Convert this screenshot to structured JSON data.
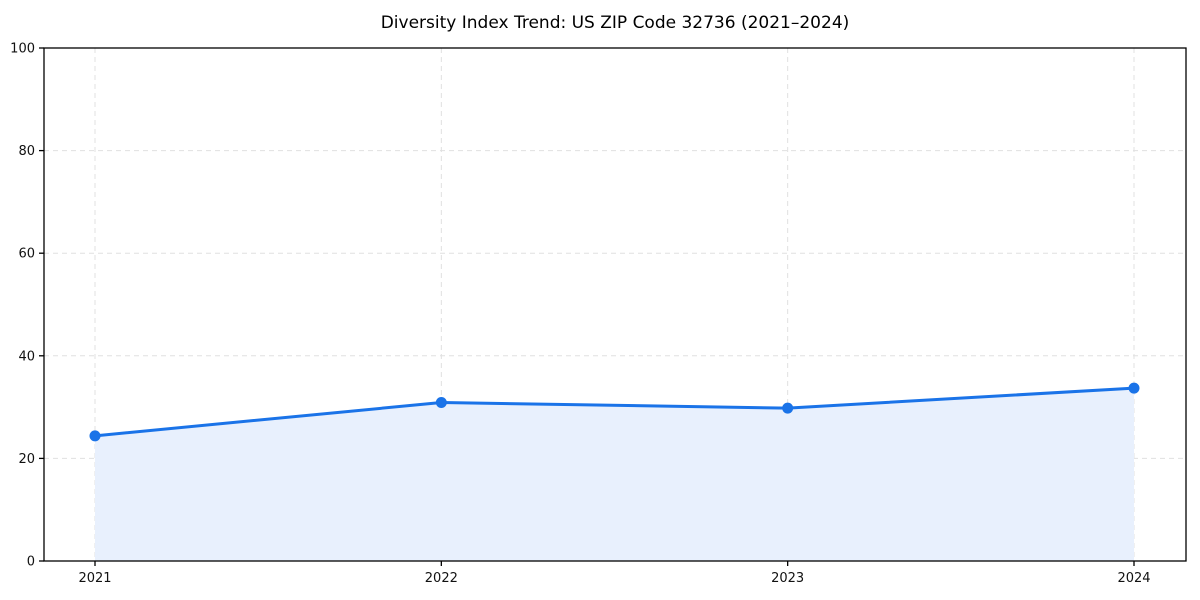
{
  "chart_data": {
    "type": "area",
    "title": "Diversity Index Trend: US ZIP Code 32736 (2021–2024)",
    "categories": [
      "2021",
      "2022",
      "2023",
      "2024"
    ],
    "series": [
      {
        "name": "Diversity Index",
        "values": [
          24.4,
          30.9,
          29.8,
          33.7
        ]
      }
    ],
    "xlabel": "",
    "ylabel": "",
    "ylim": [
      0,
      100
    ],
    "yticks": [
      0,
      20,
      40,
      60,
      80,
      100
    ],
    "grid": true,
    "grid_style": "dashed",
    "legend": false,
    "colors": {
      "line": "#1a73e8",
      "marker": "#1a73e8",
      "fill": "#e8f0fd",
      "grid": "#e0e0e0",
      "spine": "#000000",
      "background": "#ffffff",
      "text": "#000000"
    }
  }
}
